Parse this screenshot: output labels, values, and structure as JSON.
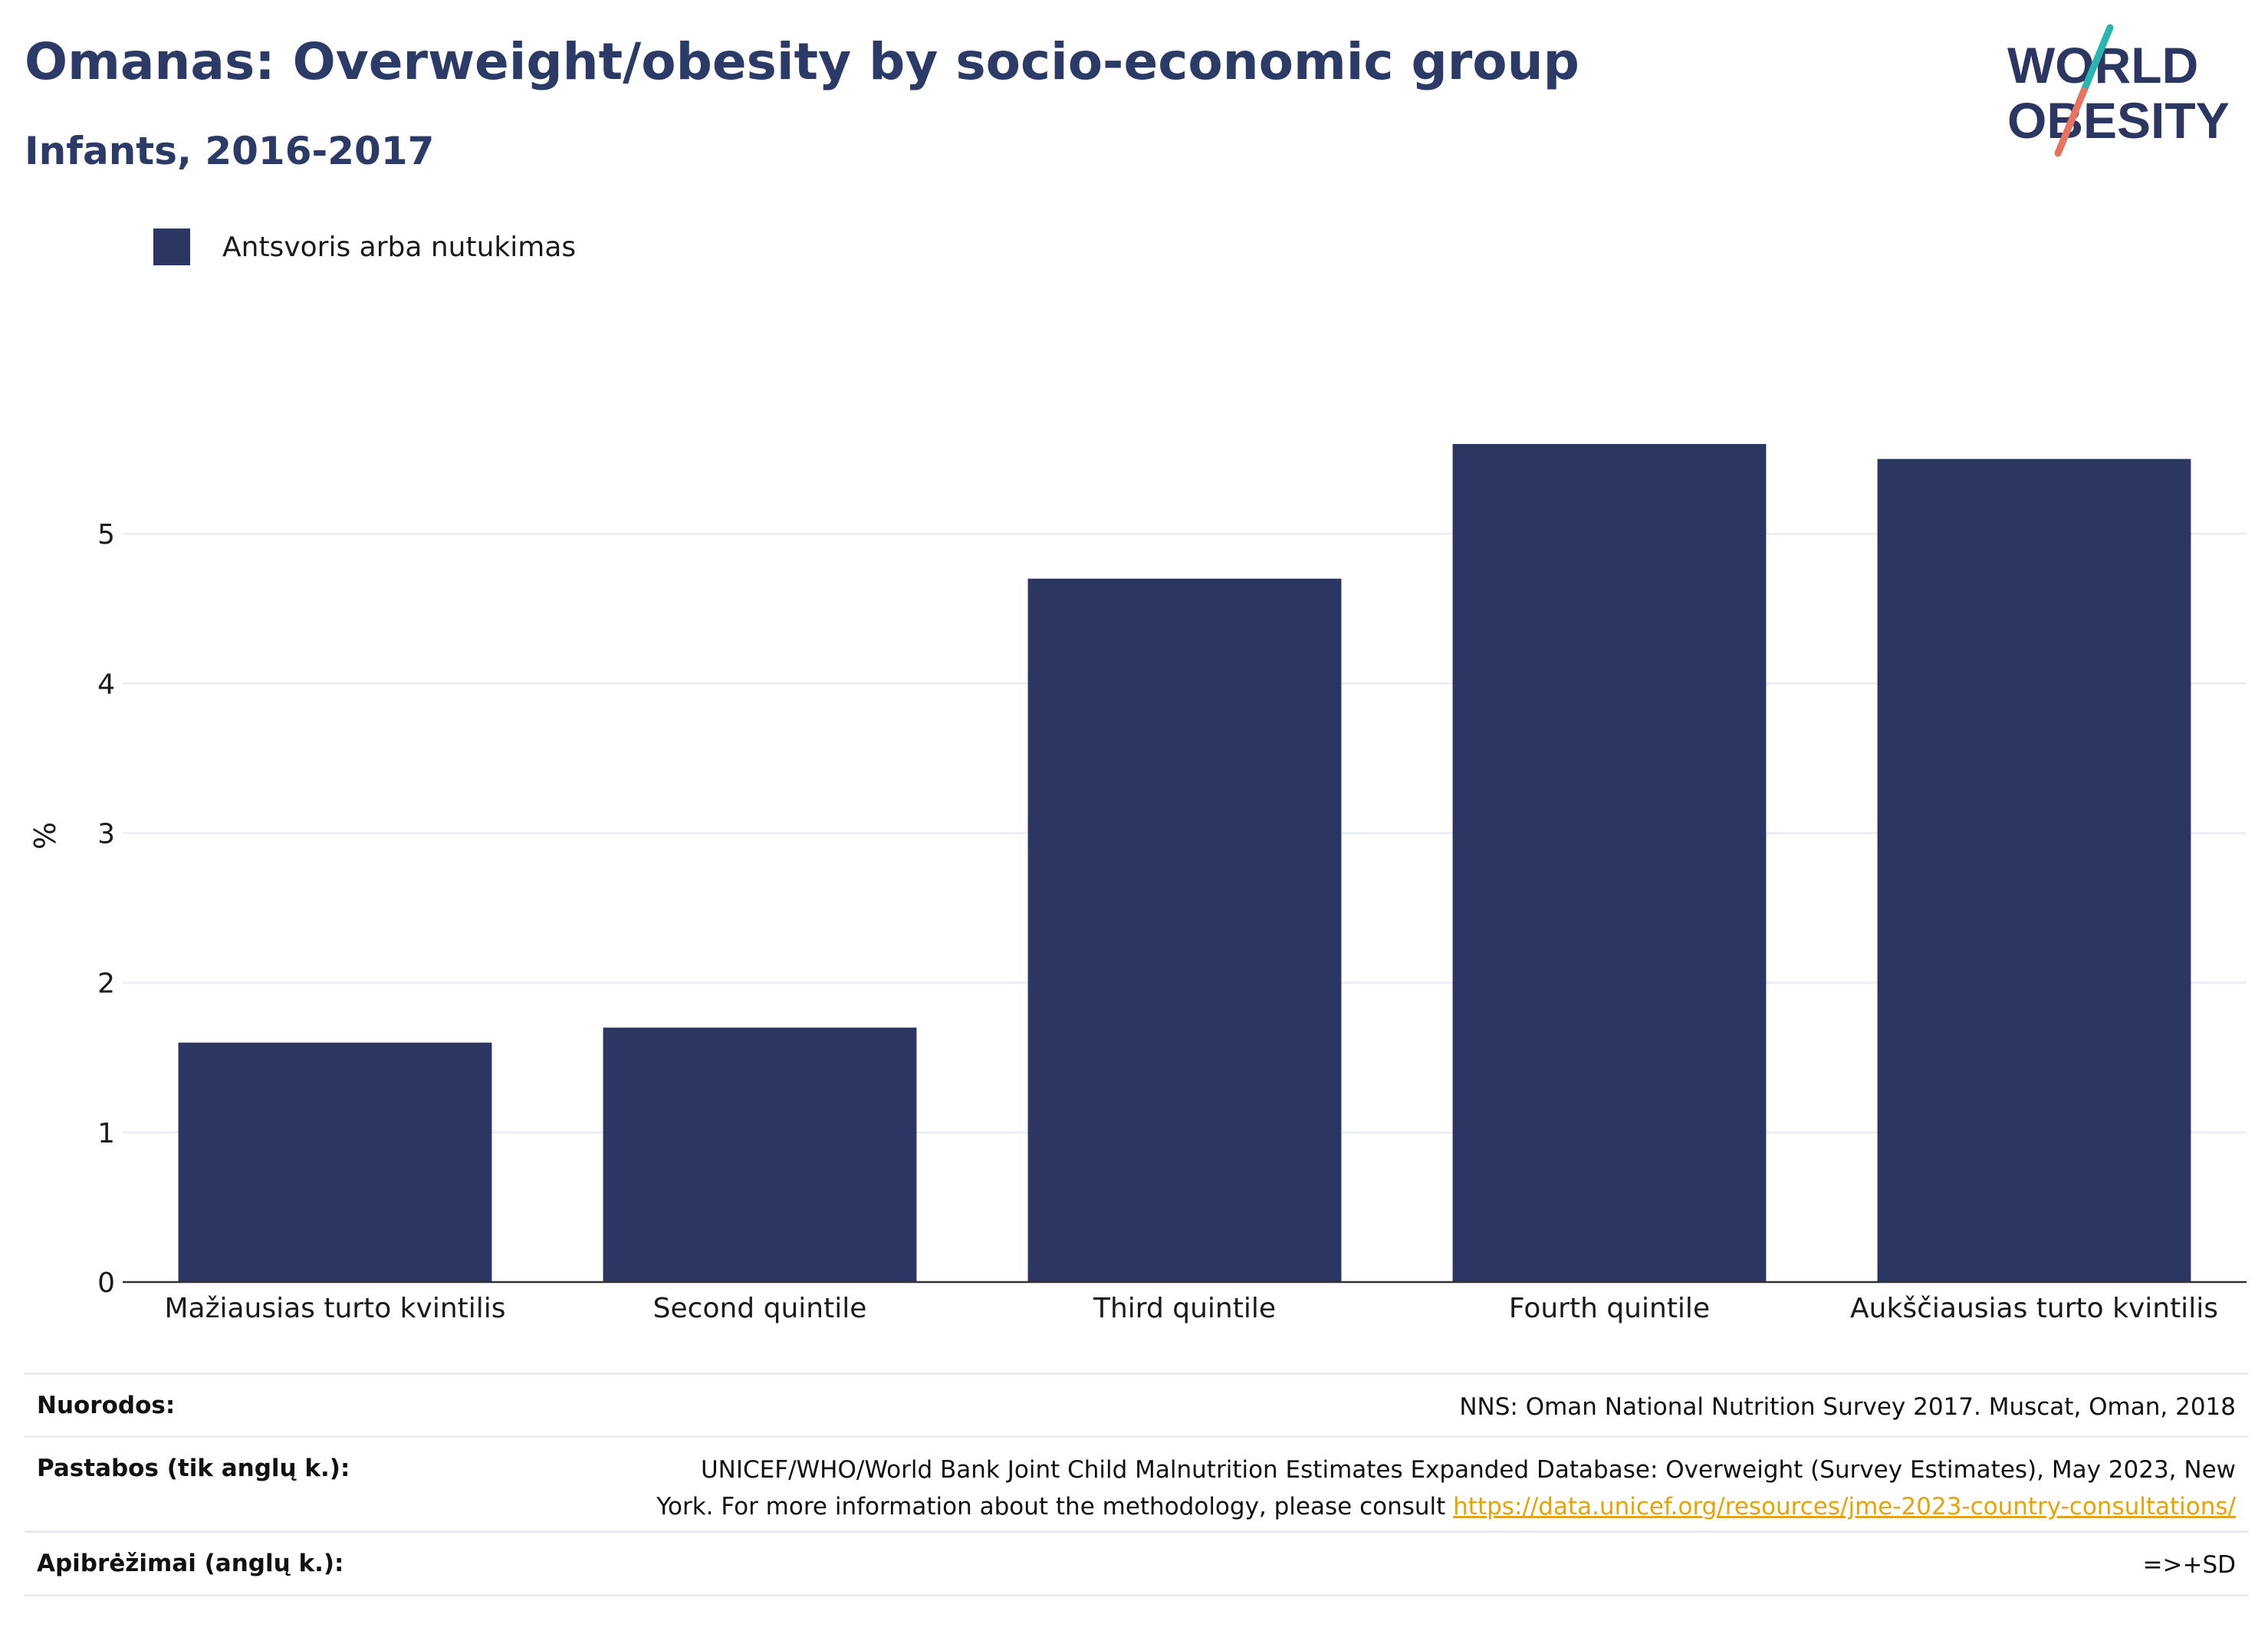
{
  "header": {
    "title": "Omanas: Overweight/obesity by socio-economic group",
    "subtitle": "Infants, 2016-2017"
  },
  "logo": {
    "line1": "WORLD",
    "line2": "OBESITY",
    "colors": {
      "text": "#2b3663",
      "slash_top": "#2bb5b0",
      "slash_bottom": "#e8735f"
    }
  },
  "legend": {
    "label": "Antsvoris arba nutukimas",
    "color": "#2b3663"
  },
  "chart_data": {
    "type": "bar",
    "categories": [
      "Mažiausias turto kvintilis",
      "Second quintile",
      "Third quintile",
      "Fourth quintile",
      "Aukščiausias turto kvintilis"
    ],
    "series": [
      {
        "name": "Antsvoris arba nutukimas",
        "values": [
          1.6,
          1.7,
          4.7,
          5.6,
          5.5
        ],
        "color": "#2b3663"
      }
    ],
    "title": "Omanas: Overweight/obesity by socio-economic group",
    "subtitle": "Infants, 2016-2017",
    "xlabel": "",
    "ylabel": "%",
    "ylim": [
      0,
      5.8
    ],
    "yticks": [
      0,
      1,
      2,
      3,
      4,
      5
    ],
    "grid": true,
    "legend_position": "top-left"
  },
  "footer": {
    "rows": [
      {
        "label": "Nuorodos:",
        "value": "NNS: Oman National Nutrition Survey 2017. Muscat, Oman, 2018"
      },
      {
        "label": "Pastabos (tik anglų k.):",
        "value_line1": "UNICEF/WHO/World Bank Joint Child Malnutrition Estimates Expanded Database: Overweight (Survey Estimates), May 2023, New",
        "value_line2": "York. For more information about the methodology, please consult",
        "link": "https://data.unicef.org/resources/jme-2023-country-consultations/"
      },
      {
        "label": "Apibrėžimai (anglų k.):",
        "value": "=>+SD"
      }
    ]
  }
}
